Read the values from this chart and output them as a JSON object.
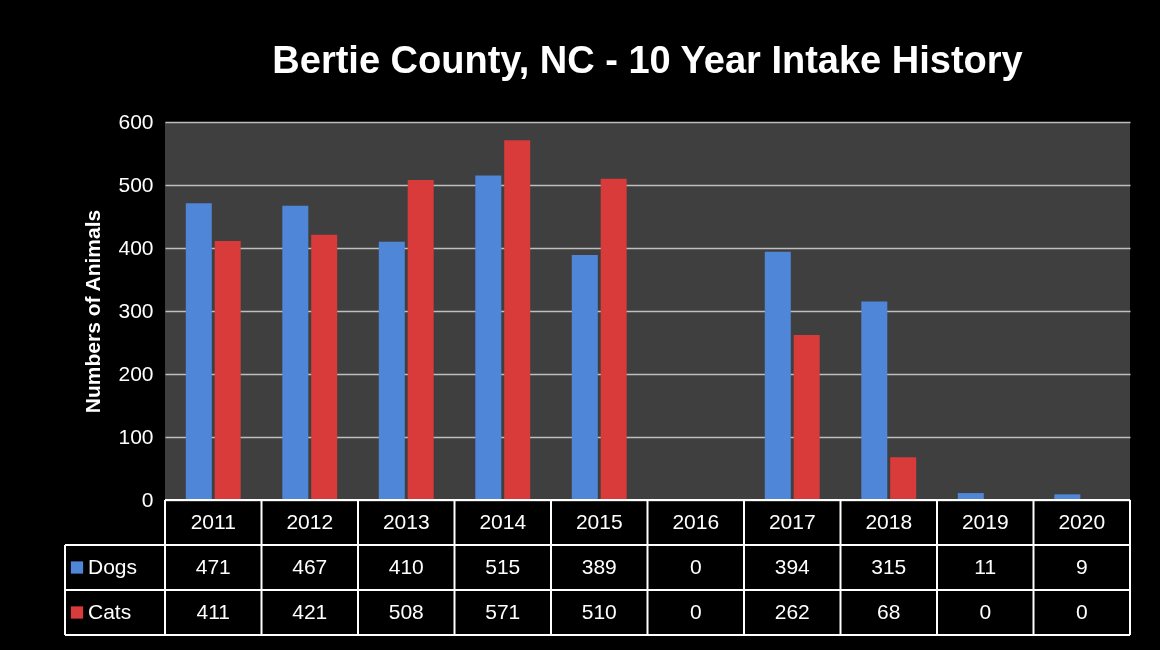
{
  "chart_data": {
    "type": "bar",
    "title": "Bertie County, NC -  10 Year Intake History",
    "ylabel": "Numbers of Animals",
    "categories": [
      "2011",
      "2012",
      "2013",
      "2014",
      "2015",
      "2016",
      "2017",
      "2018",
      "2019",
      "2020"
    ],
    "series": [
      {
        "name": "Dogs",
        "color": "#4f86d8",
        "values": [
          471,
          467,
          410,
          515,
          389,
          0,
          394,
          315,
          11,
          9
        ]
      },
      {
        "name": "Cats",
        "color": "#d93a3a",
        "values": [
          411,
          421,
          508,
          571,
          510,
          0,
          262,
          68,
          0,
          0
        ]
      }
    ],
    "ylim": [
      0,
      600
    ],
    "yticks": [
      0,
      100,
      200,
      300,
      400,
      500,
      600
    ],
    "grid": "y",
    "data_labels": true,
    "legend": "bottom left"
  }
}
